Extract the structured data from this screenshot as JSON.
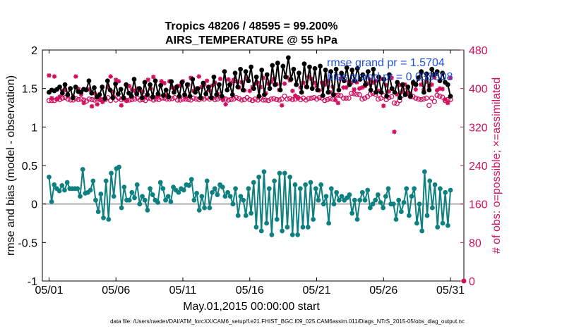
{
  "chart_data": {
    "type": "line",
    "title": [
      "Tropics 48206 / 48595 = 99.200%",
      "AIRS_TEMPERATURE @ 55 hPa"
    ],
    "xlabel": "May.01,2015 00:00:00 start",
    "ylabel_left": "rmse and bias (model - observation)",
    "ylabel_right": "# of obs: o=possible; ×=assimilated",
    "xlim": [
      0.5,
      32.0
    ],
    "ylim_left": [
      -1,
      2
    ],
    "ylim_right": [
      0,
      480
    ],
    "x_ticks": [
      {
        "v": 1,
        "label": "05/01"
      },
      {
        "v": 6,
        "label": "05/06"
      },
      {
        "v": 11,
        "label": "05/11"
      },
      {
        "v": 16,
        "label": "05/16"
      },
      {
        "v": 21,
        "label": "05/21"
      },
      {
        "v": 26,
        "label": "05/26"
      },
      {
        "v": 31,
        "label": "05/31"
      }
    ],
    "y_ticks_left": [
      {
        "v": -1,
        "label": "-1"
      },
      {
        "v": -0.5,
        "label": "-0.5"
      },
      {
        "v": 0,
        "label": "0"
      },
      {
        "v": 0.5,
        "label": "0.5"
      },
      {
        "v": 1,
        "label": "1"
      },
      {
        "v": 1.5,
        "label": "1.5"
      },
      {
        "v": 2,
        "label": "2"
      }
    ],
    "y_ticks_right": [
      {
        "v": 0,
        "label": "0"
      },
      {
        "v": 80,
        "label": "80"
      },
      {
        "v": 160,
        "label": "160"
      },
      {
        "v": 240,
        "label": "240"
      },
      {
        "v": 320,
        "label": "320"
      },
      {
        "v": 400,
        "label": "400"
      },
      {
        "v": 480,
        "label": "480"
      }
    ],
    "legend": [
      "rmse grand pr = 1.5704",
      "bias grand pr = 0.038508"
    ],
    "footer": "data file: /Users/raeder/DAI/ATM_forcXX/CAM6_setup/f.e21.FHIST_BGC.f09_025.CAM6assim.011/Diags_NTrS_2015-05/obs_diag_output.nc",
    "series": [
      {
        "name": "rmse",
        "color": "#000000",
        "marker": "dot",
        "values": [
          1.45,
          1.48,
          1.47,
          1.49,
          1.52,
          1.44,
          1.55,
          1.42,
          1.5,
          1.38,
          1.52,
          1.46,
          1.45,
          1.49,
          1.48,
          1.6,
          1.44,
          1.51,
          1.39,
          1.42,
          1.52,
          1.37,
          1.6,
          1.48,
          1.38,
          1.56,
          1.43,
          1.49,
          1.38,
          1.55,
          1.44,
          1.4,
          1.62,
          1.43,
          1.5,
          1.38,
          1.58,
          1.42,
          1.55,
          1.39,
          1.6,
          1.43,
          1.54,
          1.41,
          1.48,
          1.39,
          1.59,
          1.45,
          1.52,
          1.4,
          1.58,
          1.42,
          1.55,
          1.4,
          1.62,
          1.45,
          1.5,
          1.38,
          1.57,
          1.43,
          1.52,
          1.38,
          1.65,
          1.42,
          1.55,
          1.4,
          1.72,
          1.48,
          1.55,
          1.42,
          1.7,
          1.52,
          1.75,
          1.48,
          1.72,
          1.6,
          1.78,
          1.5,
          1.65,
          1.4,
          1.74,
          1.42,
          1.68,
          1.5,
          1.8,
          1.55,
          1.83,
          1.48,
          1.79,
          1.65,
          1.9,
          1.62,
          1.75,
          1.55,
          1.7,
          1.45,
          1.82,
          1.52,
          1.78,
          1.5,
          1.76,
          1.48,
          1.79,
          1.41,
          1.74,
          1.45,
          1.72,
          1.42,
          1.75,
          1.48,
          1.7,
          1.6,
          1.77,
          1.55,
          1.74,
          1.6,
          1.76,
          1.62,
          1.68,
          1.55,
          1.72,
          1.48,
          1.75,
          1.45,
          1.65,
          1.45,
          1.62,
          1.4,
          1.68,
          1.5,
          1.45,
          1.58,
          1.38,
          1.55,
          1.42,
          1.52,
          1.4,
          1.58,
          1.55,
          1.64,
          1.72,
          1.45,
          1.69,
          1.48,
          1.75,
          1.68,
          1.72,
          1.6,
          1.7,
          1.58,
          1.55,
          1.4
        ]
      },
      {
        "name": "bias",
        "color": "#0e8080",
        "marker": "dot",
        "values": [
          0.35,
          0.03,
          0.25,
          0.2,
          0.17,
          0.24,
          0.18,
          0.28,
          0.2,
          0.2,
          0.2,
          0.2,
          0.1,
          0.45,
          0.14,
          0.15,
          0.18,
          0.3,
          0.05,
          -0.1,
          0.13,
          -0.18,
          0.3,
          -0.2,
          0.4,
          0.1,
          0.46,
          0.48,
          -0.05,
          0.22,
          0.05,
          0.05,
          0.15,
          0.08,
          0.25,
          0.0,
          0.1,
          0.05,
          -0.08,
          0.2,
          0.12,
          0.05,
          0.02,
          0.28,
          0.2,
          0.05,
          0.1,
          0.03,
          0.22,
          0.18,
          0.15,
          0.2,
          0.18,
          0.25,
          0.24,
          0.32,
          0.05,
          0.14,
          -0.08,
          0.1,
          -0.05,
          0.3,
          -0.05,
          0.15,
          0.2,
          0.12,
          0.25,
          0.22,
          0.1,
          0.15,
          0.1,
          0.0,
          0.2,
          -0.15,
          0.1,
          0.05,
          -0.15,
          0.2,
          -0.12,
          0.28,
          -0.3,
          0.35,
          -0.35,
          0.42,
          -0.25,
          0.2,
          -0.4,
          0.3,
          -0.2,
          0.4,
          -0.35,
          0.4,
          -0.3,
          0.35,
          -0.4,
          0.25,
          -0.4,
          0.2,
          -0.3,
          0.25,
          -0.3,
          0.28,
          -0.2,
          0.2,
          0.05,
          0.25,
          0.0,
          0.1,
          -0.25,
          0.2,
          0.0,
          0.15,
          0.05,
          0.1,
          0.05,
          0.08,
          0.12,
          -0.12,
          0.05,
          -0.2,
          0.05,
          0.15,
          0.05,
          0.18,
          -0.05,
          0.0,
          0.05,
          0.12,
          0.02,
          -0.05,
          0.1,
          0.2,
          0.0,
          0.0,
          -0.2,
          0.05,
          -0.1,
          0.02,
          0.2,
          -0.15,
          0.1,
          0.2,
          -0.25,
          0.0,
          -0.35,
          0.42,
          -0.15,
          0.3,
          -0.05,
          0.25,
          -0.3,
          0.2,
          -0.25,
          0.15,
          -0.28,
          0.18
        ]
      },
      {
        "name": "obs_possible",
        "color": "#d0105f",
        "marker": "circle",
        "axis": "right",
        "values": [
          375,
          375,
          375,
          378,
          377,
          380,
          381,
          378,
          376,
          376,
          379,
          377,
          378,
          376,
          374,
          378,
          377,
          376,
          378,
          377,
          376,
          377,
          381,
          375,
          383,
          376,
          380,
          377,
          378,
          375,
          376,
          377,
          378,
          380,
          376,
          377,
          375,
          380,
          379,
          376,
          378,
          377,
          380,
          380,
          378,
          378,
          379,
          381,
          376,
          376,
          378,
          378,
          377,
          376,
          380,
          378,
          377,
          379,
          378,
          381,
          378,
          380,
          377,
          378,
          381,
          380,
          378,
          376,
          377,
          378,
          381,
          379,
          376,
          377,
          381,
          377,
          375,
          378,
          376,
          380,
          376,
          376,
          375,
          378,
          379,
          377,
          376,
          378,
          384,
          378,
          379,
          377,
          378,
          381,
          377,
          380,
          376,
          379,
          380,
          381,
          378,
          381,
          380,
          375,
          377,
          379,
          378,
          386,
          386,
          385,
          380,
          380,
          380,
          390,
          389,
          388,
          387,
          378,
          380,
          383,
          388,
          390,
          388,
          378,
          380,
          385,
          377,
          381,
          383,
          370,
          369,
          375,
          386,
          395,
          390,
          383,
          383,
          380,
          378,
          377,
          378,
          380,
          365,
          380,
          373,
          386,
          384,
          382,
          375,
          377,
          377
        ]
      },
      {
        "name": "obs_assimilated",
        "color": "#d0105f",
        "marker": "asterisk",
        "axis": "right",
        "values": [
          427,
          380,
          425,
          378,
          383,
          395,
          397,
          385,
          400,
          382,
          425,
          399,
          388,
          370,
          398,
          398,
          363,
          390,
          367,
          378,
          372,
          380,
          403,
          425,
          393,
          418,
          415,
          365,
          380,
          375,
          405,
          398,
          395,
          400,
          396,
          393,
          382,
          418,
          400,
          424,
          382,
          386,
          415,
          411,
          386,
          415,
          402,
          398,
          405,
          406,
          415,
          382,
          408,
          422,
          395,
          400,
          425,
          403,
          408,
          416,
          396,
          406,
          412,
          389,
          420,
          376,
          367,
          419,
          412,
          418,
          415,
          402,
          413,
          396,
          420,
          395,
          403,
          410,
          412,
          403,
          422,
          390,
          410,
          414,
          420,
          409,
          397,
          365,
          410,
          423,
          417,
          395,
          385,
          380,
          402,
          412,
          404,
          425,
          420,
          412,
          405,
          396,
          412,
          408,
          415,
          392,
          404,
          376,
          370,
          420,
          402,
          402,
          414,
          412,
          398,
          413,
          400,
          402,
          405,
          410,
          418,
          412,
          416,
          395,
          420,
          364,
          407,
          394,
          422,
          310,
          388,
          407,
          394,
          408,
          391,
          389,
          410,
          398,
          420,
          408,
          397,
          414,
          405,
          408,
          423,
          396,
          400,
          399,
          377,
          370,
          422
        ]
      }
    ]
  }
}
